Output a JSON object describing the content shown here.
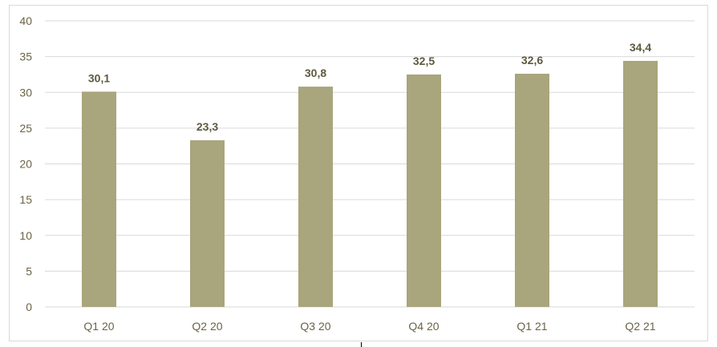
{
  "chart_data": {
    "type": "bar",
    "title": "",
    "xlabel": "",
    "ylabel": "",
    "categories": [
      "Q1 20",
      "Q2 20",
      "Q3 20",
      "Q4 20",
      "Q1 21",
      "Q2 21"
    ],
    "values": [
      30.1,
      23.3,
      30.8,
      32.5,
      32.6,
      34.4
    ],
    "data_labels": [
      "30,1",
      "23,3",
      "30,8",
      "32,5",
      "32,6",
      "34,4"
    ],
    "ylim": [
      0,
      40
    ],
    "yticks": [
      "0",
      "5",
      "10",
      "15",
      "20",
      "25",
      "30",
      "35",
      "40"
    ],
    "grid": true,
    "legend": "none",
    "colors": {
      "bar": "#a9a57c",
      "gridline": "#d9d9d9",
      "axis_line": "#d9d9d9",
      "tick_text": "#6b6447",
      "data_label_text": "#5e5940",
      "frame": "#d9d9d9"
    }
  }
}
